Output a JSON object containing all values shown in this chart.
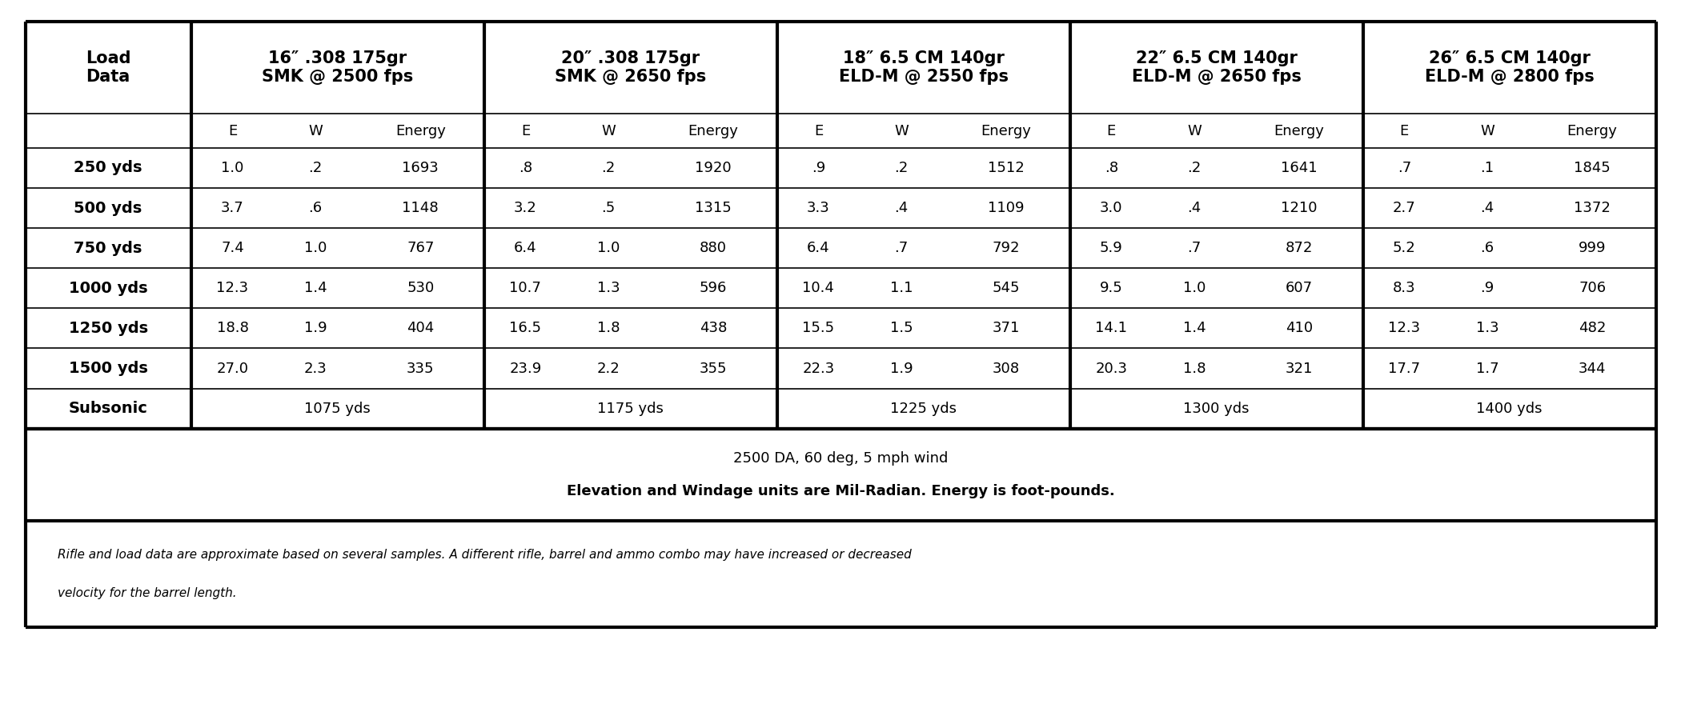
{
  "col_groups": [
    {
      "label": "16″ .308 175gr\nSMK @ 2500 fps"
    },
    {
      "label": "20″ .308 175gr\nSMK @ 2650 fps"
    },
    {
      "label": "18″ 6.5 CM 140gr\nELD-M @ 2550 fps"
    },
    {
      "label": "22″ 6.5 CM 140gr\nELD-M @ 2650 fps"
    },
    {
      "label": "26″ 6.5 CM 140gr\nELD-M @ 2800 fps"
    }
  ],
  "row_labels": [
    "250 yds",
    "500 yds",
    "750 yds",
    "1000 yds",
    "1250 yds",
    "1500 yds",
    "Subsonic"
  ],
  "data": [
    [
      "1.0",
      ".2",
      "1693",
      ".8",
      ".2",
      "1920",
      ".9",
      ".2",
      "1512",
      ".8",
      ".2",
      "1641",
      ".7",
      ".1",
      "1845"
    ],
    [
      "3.7",
      ".6",
      "1148",
      "3.2",
      ".5",
      "1315",
      "3.3",
      ".4",
      "1109",
      "3.0",
      ".4",
      "1210",
      "2.7",
      ".4",
      "1372"
    ],
    [
      "7.4",
      "1.0",
      "767",
      "6.4",
      "1.0",
      "880",
      "6.4",
      ".7",
      "792",
      "5.9",
      ".7",
      "872",
      "5.2",
      ".6",
      "999"
    ],
    [
      "12.3",
      "1.4",
      "530",
      "10.7",
      "1.3",
      "596",
      "10.4",
      "1.1",
      "545",
      "9.5",
      "1.0",
      "607",
      "8.3",
      ".9",
      "706"
    ],
    [
      "18.8",
      "1.9",
      "404",
      "16.5",
      "1.8",
      "438",
      "15.5",
      "1.5",
      "371",
      "14.1",
      "1.4",
      "410",
      "12.3",
      "1.3",
      "482"
    ],
    [
      "27.0",
      "2.3",
      "335",
      "23.9",
      "2.2",
      "355",
      "22.3",
      "1.9",
      "308",
      "20.3",
      "1.8",
      "321",
      "17.7",
      "1.7",
      "344"
    ],
    [
      "1075 yds",
      "",
      "",
      "1175 yds",
      "",
      "",
      "1225 yds",
      "",
      "",
      "1300 yds",
      "",
      "",
      "1400 yds",
      "",
      ""
    ]
  ],
  "note1": "2500 DA, 60 deg, 5 mph wind",
  "note2": "Elevation and Windage units are Mil-Radian. Energy is foot-pounds.",
  "disclaimer_line1": "Rifle and load data are approximate based on several samples. A different rifle, barrel and ammo combo may have increased or decreased",
  "disclaimer_line2": "velocity for the barrel length.",
  "bg_color": "#ffffff",
  "border_color": "#000000",
  "text_color": "#000000",
  "thick_lw": 3.0,
  "thin_lw": 1.2,
  "header_fontsize": 15,
  "subheader_fontsize": 13,
  "data_fontsize": 13,
  "rowlabel_fontsize": 14,
  "note_fontsize": 13,
  "disclaimer_fontsize": 11
}
